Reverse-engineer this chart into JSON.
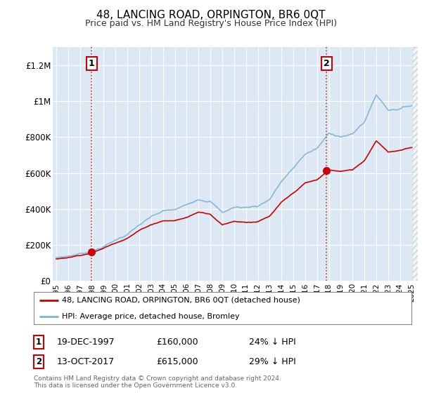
{
  "title": "48, LANCING ROAD, ORPINGTON, BR6 0QT",
  "subtitle": "Price paid vs. HM Land Registry's House Price Index (HPI)",
  "ylim": [
    0,
    1300000
  ],
  "xlim_start": 1994.7,
  "xlim_end": 2025.5,
  "plot_bg_color": "#dce9f5",
  "grid_color": "#c8d8e8",
  "sale1_date": 1997.97,
  "sale1_price": 160000,
  "sale1_label": "1",
  "sale2_date": 2017.79,
  "sale2_price": 615000,
  "sale2_label": "2",
  "hpi_color": "#7ab3d4",
  "price_color": "#cc0000",
  "legend_line1": "48, LANCING ROAD, ORPINGTON, BR6 0QT (detached house)",
  "legend_line2": "HPI: Average price, detached house, Bromley",
  "annotation1_date": "19-DEC-1997",
  "annotation1_price": "£160,000",
  "annotation1_pct": "24% ↓ HPI",
  "annotation2_date": "13-OCT-2017",
  "annotation2_price": "£615,000",
  "annotation2_pct": "29% ↓ HPI",
  "footer": "Contains HM Land Registry data © Crown copyright and database right 2024.\nThis data is licensed under the Open Government Licence v3.0.",
  "hatch_start": 2025.0,
  "yticks": [
    0,
    200000,
    400000,
    600000,
    800000,
    1000000,
    1200000
  ],
  "ytick_labels": [
    "£0",
    "£200K",
    "£400K",
    "£600K",
    "£800K",
    "£1M",
    "£1.2M"
  ]
}
